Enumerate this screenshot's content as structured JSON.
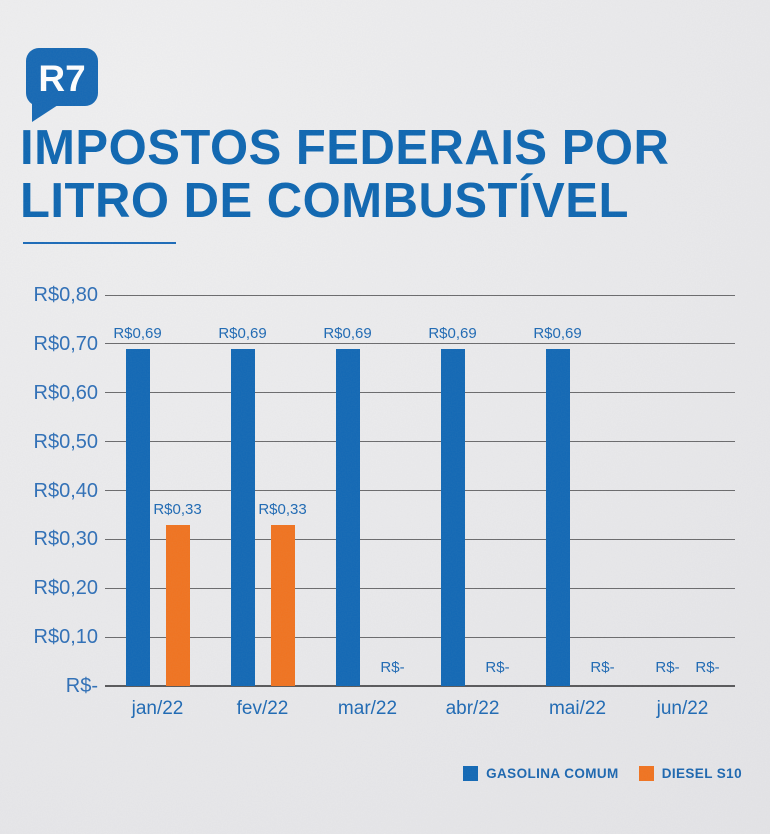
{
  "brand": {
    "logo_text": "R7"
  },
  "header": {
    "title_line1": "IMPOSTOS FEDERAIS POR",
    "title_line2": "LITRO DE COMBUSTÍVEL"
  },
  "colors": {
    "accent_blue": "#0d66b1",
    "bar_blue": "#1168b5",
    "bar_orange": "#f1731f",
    "grid": "#6a6a6c",
    "axis": "#58585a",
    "tick_blue": "#2e6fb7",
    "label_blue": "#1d69b4",
    "background": "#eaeaec"
  },
  "chart_data": {
    "type": "bar",
    "title": "IMPOSTOS FEDERAIS POR LITRO DE COMBUSTÍVEL",
    "categories": [
      "jan/22",
      "fev/22",
      "mar/22",
      "abr/22",
      "mai/22",
      "jun/22"
    ],
    "series": [
      {
        "name": "GASOLINA COMUM",
        "color": "#1168b5",
        "values": [
          0.69,
          0.69,
          0.69,
          0.69,
          0.69,
          0
        ],
        "labels": [
          "R$0,69",
          "R$0,69",
          "R$0,69",
          "R$0,69",
          "R$0,69",
          "R$-"
        ]
      },
      {
        "name": "DIESEL S10",
        "color": "#f1731f",
        "values": [
          0.33,
          0.33,
          0,
          0,
          0,
          0
        ],
        "labels": [
          "R$0,33",
          "R$0,33",
          "R$-",
          "R$-",
          "R$-",
          "R$-"
        ]
      }
    ],
    "xlabel": "",
    "ylabel": "",
    "ylim": [
      0,
      0.8
    ],
    "ytick_step": 0.1,
    "yticks": [
      "R$0,80",
      "R$0,70",
      "R$0,60",
      "R$0,50",
      "R$0,40",
      "R$0,30",
      "R$0,20",
      "R$0,10",
      "R$-"
    ],
    "grid": true,
    "legend_position": "bottom-right"
  },
  "legend": [
    {
      "label": "GASOLINA COMUM",
      "color": "#1168b5"
    },
    {
      "label": "DIESEL S10",
      "color": "#f1731f"
    }
  ]
}
